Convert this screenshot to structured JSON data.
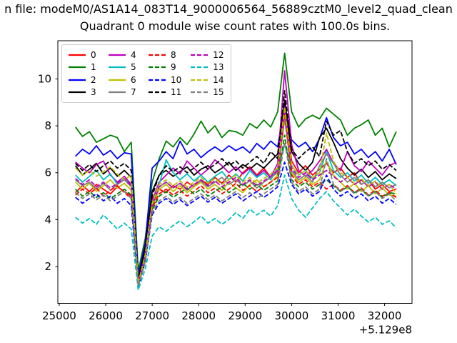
{
  "figure": {
    "suptitle": "n file: modeM0/AS1A14_083T14_9000006564_56889cztM0_level2_quad_clean",
    "title": "Quadrant 0 module wise count rates with 100.0s bins."
  },
  "chart_data": {
    "type": "line",
    "title": "Quadrant 0 module wise count rates with 100.0s bins.",
    "xlabel": "",
    "ylabel": "",
    "x_offset_label": "+5.129e8",
    "xlim": [
      24970,
      32590
    ],
    "ylim": [
      0.43,
      11.63
    ],
    "x_ticks": [
      25000,
      26000,
      27000,
      28000,
      29000,
      30000,
      31000,
      32000
    ],
    "y_ticks": [
      2,
      4,
      6,
      8,
      10
    ],
    "grid": false,
    "legend_position": "upper left",
    "legend_columns": 4,
    "axis_color": "#000000",
    "x": [
      25350,
      25500,
      25650,
      25800,
      25950,
      26100,
      26250,
      26400,
      26550,
      26700,
      26850,
      27000,
      27150,
      27300,
      27450,
      27600,
      27750,
      27900,
      28050,
      28200,
      28350,
      28500,
      28650,
      28800,
      28950,
      29100,
      29250,
      29400,
      29550,
      29700,
      29850,
      30000,
      30150,
      30300,
      30450,
      30600,
      30750,
      30900,
      31050,
      31200,
      31350,
      31500,
      31650,
      31800,
      31950,
      32100,
      32250
    ],
    "series": [
      {
        "name": "0",
        "color": "#ff0000",
        "dash": "solid",
        "values": [
          5.15,
          5.45,
          5.2,
          5.5,
          5.3,
          5.1,
          5.4,
          5.2,
          5.0,
          1.3,
          2.6,
          4.9,
          5.3,
          5.15,
          5.45,
          5.3,
          5.6,
          5.4,
          5.7,
          5.5,
          5.8,
          5.55,
          5.9,
          5.6,
          6.0,
          6.25,
          5.9,
          6.2,
          5.8,
          6.1,
          9.0,
          6.5,
          6.0,
          6.3,
          5.9,
          6.15,
          6.4,
          6.0,
          6.2,
          5.8,
          6.0,
          5.5,
          5.7,
          5.3,
          5.5,
          5.2,
          5.3
        ]
      },
      {
        "name": "1",
        "color": "#008000",
        "dash": "solid",
        "values": [
          7.95,
          7.55,
          7.75,
          7.3,
          7.45,
          7.6,
          7.5,
          6.9,
          7.3,
          1.8,
          3.2,
          5.6,
          6.6,
          7.35,
          7.1,
          7.5,
          7.2,
          7.65,
          8.2,
          7.7,
          8.0,
          7.5,
          7.8,
          7.75,
          7.6,
          8.1,
          7.9,
          8.25,
          7.95,
          8.6,
          11.1,
          8.6,
          7.95,
          8.3,
          8.45,
          8.3,
          8.75,
          8.5,
          8.25,
          7.6,
          7.9,
          8.05,
          8.25,
          7.6,
          7.9,
          7.1,
          7.75
        ]
      },
      {
        "name": "2",
        "color": "#0000ff",
        "dash": "solid",
        "values": [
          6.7,
          7.0,
          6.8,
          7.15,
          6.75,
          6.95,
          6.6,
          6.85,
          6.8,
          1.6,
          3.0,
          6.2,
          6.5,
          6.9,
          6.6,
          7.35,
          6.8,
          7.0,
          6.65,
          6.9,
          7.1,
          6.9,
          7.15,
          6.95,
          7.1,
          6.85,
          7.25,
          7.0,
          7.35,
          7.1,
          8.9,
          7.4,
          7.1,
          7.3,
          6.9,
          7.45,
          8.35,
          7.5,
          7.15,
          7.3,
          6.8,
          7.0,
          6.65,
          6.9,
          6.5,
          7.0,
          6.35
        ]
      },
      {
        "name": "3",
        "color": "#000000",
        "dash": "solid",
        "values": [
          6.3,
          5.9,
          6.15,
          6.4,
          5.95,
          6.2,
          5.85,
          6.1,
          5.8,
          1.45,
          2.8,
          5.2,
          5.9,
          6.1,
          5.85,
          6.05,
          6.25,
          5.9,
          6.15,
          6.3,
          6.0,
          6.2,
          6.45,
          6.1,
          6.35,
          6.15,
          6.4,
          6.2,
          6.5,
          6.8,
          9.1,
          6.9,
          6.4,
          6.1,
          6.45,
          7.5,
          7.9,
          7.3,
          6.6,
          6.2,
          5.9,
          6.15,
          5.8,
          6.05,
          5.7,
          5.95,
          5.75
        ]
      },
      {
        "name": "4",
        "color": "#bf00bf",
        "dash": "solid",
        "values": [
          6.45,
          6.2,
          6.0,
          6.35,
          6.5,
          5.9,
          5.6,
          5.85,
          5.5,
          1.25,
          2.5,
          4.8,
          5.6,
          5.9,
          6.2,
          5.95,
          6.5,
          6.2,
          5.9,
          6.15,
          6.55,
          6.3,
          6.0,
          6.25,
          5.95,
          6.2,
          5.85,
          6.1,
          5.8,
          6.4,
          10.35,
          7.2,
          6.1,
          5.85,
          6.1,
          6.5,
          7.0,
          6.4,
          6.1,
          6.9,
          6.3,
          6.05,
          6.5,
          6.2,
          5.9,
          6.3,
          6.45
        ]
      },
      {
        "name": "5",
        "color": "#00bfbf",
        "dash": "solid",
        "values": [
          5.9,
          5.6,
          5.85,
          6.1,
          5.7,
          5.95,
          5.5,
          5.75,
          5.45,
          1.2,
          2.4,
          4.6,
          5.5,
          6.55,
          6.0,
          5.7,
          5.95,
          5.65,
          5.9,
          5.6,
          5.85,
          6.05,
          5.7,
          5.95,
          5.65,
          6.1,
          5.8,
          6.0,
          5.7,
          6.2,
          7.2,
          6.3,
          5.9,
          6.1,
          5.75,
          6.0,
          6.9,
          6.1,
          5.8,
          6.0,
          5.65,
          5.9,
          5.55,
          5.8,
          5.5,
          5.7,
          5.45
        ]
      },
      {
        "name": "6",
        "color": "#bfbf00",
        "dash": "solid",
        "values": [
          5.6,
          5.3,
          5.55,
          5.2,
          5.45,
          5.7,
          5.35,
          5.55,
          5.25,
          1.2,
          2.3,
          4.5,
          5.3,
          5.5,
          5.2,
          5.45,
          5.15,
          5.4,
          5.6,
          5.3,
          5.5,
          5.25,
          5.6,
          5.35,
          5.15,
          5.5,
          5.7,
          5.4,
          5.6,
          5.9,
          8.7,
          6.0,
          5.6,
          5.8,
          5.5,
          5.7,
          6.5,
          5.9,
          5.6,
          5.3,
          5.55,
          5.2,
          5.45,
          5.1,
          5.35,
          5.05,
          5.0
        ]
      },
      {
        "name": "7",
        "color": "#808080",
        "dash": "solid",
        "values": [
          5.7,
          5.45,
          5.6,
          5.3,
          5.55,
          5.25,
          5.5,
          5.7,
          5.4,
          1.3,
          2.5,
          4.7,
          5.4,
          5.6,
          5.35,
          5.55,
          5.25,
          5.5,
          5.65,
          5.4,
          5.6,
          5.8,
          5.5,
          5.7,
          5.45,
          5.65,
          5.35,
          5.6,
          5.8,
          6.0,
          8.3,
          6.1,
          5.7,
          5.9,
          5.6,
          6.3,
          6.8,
          6.4,
          5.9,
          5.6,
          5.8,
          5.5,
          5.7,
          5.4,
          5.6,
          5.35,
          5.5
        ]
      },
      {
        "name": "8",
        "color": "#ff0000",
        "dash": "dashed",
        "values": [
          5.05,
          5.3,
          5.1,
          5.35,
          5.0,
          5.25,
          5.45,
          5.15,
          4.9,
          1.25,
          2.4,
          4.5,
          5.1,
          5.3,
          5.05,
          5.25,
          5.0,
          5.2,
          5.45,
          5.15,
          5.35,
          5.1,
          5.3,
          5.55,
          5.25,
          5.45,
          5.2,
          5.4,
          5.6,
          5.8,
          8.6,
          5.9,
          5.5,
          5.7,
          5.4,
          5.6,
          5.3,
          5.5,
          5.25,
          5.45,
          5.15,
          5.35,
          5.05,
          5.25,
          5.0,
          5.15,
          4.95
        ]
      },
      {
        "name": "9",
        "color": "#008000",
        "dash": "dashed",
        "values": [
          5.3,
          5.0,
          5.2,
          4.95,
          5.15,
          4.9,
          5.1,
          5.3,
          5.05,
          1.2,
          2.3,
          4.4,
          5.0,
          5.2,
          4.95,
          5.15,
          5.35,
          5.1,
          5.3,
          5.0,
          5.2,
          5.4,
          5.15,
          5.35,
          5.55,
          5.3,
          5.5,
          5.25,
          5.45,
          5.65,
          7.6,
          5.7,
          5.4,
          5.6,
          5.3,
          5.5,
          5.7,
          5.45,
          5.2,
          5.4,
          5.15,
          5.3,
          5.0,
          5.2,
          4.95,
          5.15,
          5.1
        ]
      },
      {
        "name": "10",
        "color": "#0000ff",
        "dash": "dashed",
        "values": [
          4.95,
          4.7,
          4.9,
          5.1,
          4.8,
          5.0,
          4.7,
          4.9,
          4.6,
          1.15,
          2.2,
          4.2,
          4.7,
          4.9,
          4.65,
          4.85,
          4.6,
          4.8,
          5.0,
          4.75,
          4.95,
          4.7,
          4.9,
          5.1,
          4.8,
          5.0,
          5.2,
          4.95,
          5.15,
          5.4,
          6.45,
          5.5,
          5.1,
          5.3,
          5.0,
          5.2,
          5.9,
          5.3,
          5.0,
          5.2,
          4.9,
          5.1,
          4.8,
          5.0,
          4.7,
          4.9,
          4.65
        ]
      },
      {
        "name": "11",
        "color": "#000000",
        "dash": "dashed",
        "values": [
          6.4,
          6.1,
          6.35,
          6.05,
          6.3,
          6.5,
          6.2,
          6.4,
          6.1,
          1.45,
          2.7,
          5.0,
          5.9,
          6.3,
          6.05,
          6.25,
          6.0,
          6.2,
          6.45,
          6.15,
          6.35,
          6.6,
          6.3,
          6.5,
          6.2,
          6.45,
          6.7,
          6.4,
          6.9,
          6.6,
          9.5,
          7.0,
          6.6,
          6.9,
          7.1,
          6.7,
          8.2,
          7.6,
          7.8,
          6.9,
          6.4,
          6.6,
          6.3,
          6.5,
          6.15,
          6.35,
          6.1
        ]
      },
      {
        "name": "12",
        "color": "#bf00bf",
        "dash": "dashed",
        "values": [
          5.75,
          5.5,
          5.7,
          5.4,
          5.6,
          5.35,
          5.55,
          5.75,
          5.45,
          1.3,
          2.5,
          4.6,
          5.4,
          5.6,
          5.35,
          5.55,
          5.3,
          5.5,
          5.7,
          5.45,
          5.65,
          5.4,
          5.6,
          5.8,
          5.5,
          5.7,
          5.45,
          5.65,
          5.85,
          6.1,
          8.8,
          6.2,
          5.8,
          6.0,
          5.7,
          5.9,
          6.1,
          5.85,
          5.6,
          5.8,
          5.5,
          5.7,
          5.4,
          5.6,
          5.3,
          5.5,
          5.3
        ]
      },
      {
        "name": "13",
        "color": "#00bfbf",
        "dash": "dashed",
        "values": [
          4.1,
          3.85,
          4.05,
          3.8,
          4.2,
          3.9,
          3.6,
          3.85,
          3.6,
          1.0,
          1.9,
          3.3,
          3.7,
          3.5,
          3.75,
          3.95,
          3.7,
          3.9,
          4.15,
          3.85,
          4.05,
          3.8,
          4.0,
          4.3,
          4.05,
          4.45,
          4.2,
          4.4,
          4.15,
          4.6,
          5.9,
          4.9,
          4.4,
          4.1,
          4.5,
          4.9,
          5.2,
          4.8,
          4.5,
          4.2,
          4.45,
          4.15,
          3.9,
          4.1,
          3.8,
          3.95,
          3.65
        ]
      },
      {
        "name": "14",
        "color": "#bfbf00",
        "dash": "dashed",
        "values": [
          6.2,
          5.9,
          6.1,
          5.85,
          6.05,
          6.25,
          5.95,
          5.7,
          5.9,
          1.3,
          2.5,
          4.7,
          5.5,
          5.7,
          5.45,
          5.65,
          5.4,
          5.6,
          5.8,
          5.55,
          5.75,
          5.5,
          5.7,
          5.9,
          5.6,
          5.8,
          5.55,
          5.75,
          5.95,
          6.2,
          8.8,
          6.3,
          5.9,
          6.1,
          5.8,
          6.0,
          7.7,
          6.5,
          6.0,
          5.8,
          5.55,
          5.75,
          5.45,
          5.65,
          5.35,
          5.5,
          5.1
        ]
      },
      {
        "name": "15",
        "color": "#808080",
        "dash": "dashed",
        "values": [
          5.15,
          4.9,
          5.1,
          4.85,
          5.05,
          4.8,
          5.0,
          5.2,
          4.9,
          1.15,
          2.2,
          4.3,
          4.8,
          5.0,
          4.75,
          4.95,
          4.7,
          4.9,
          5.1,
          4.85,
          5.05,
          4.8,
          5.0,
          5.2,
          4.95,
          5.15,
          4.9,
          5.1,
          5.3,
          5.5,
          7.3,
          5.6,
          5.2,
          5.4,
          5.1,
          5.3,
          6.6,
          5.5,
          5.2,
          5.4,
          5.1,
          5.3,
          5.0,
          5.2,
          4.9,
          5.1,
          4.8
        ]
      }
    ]
  }
}
